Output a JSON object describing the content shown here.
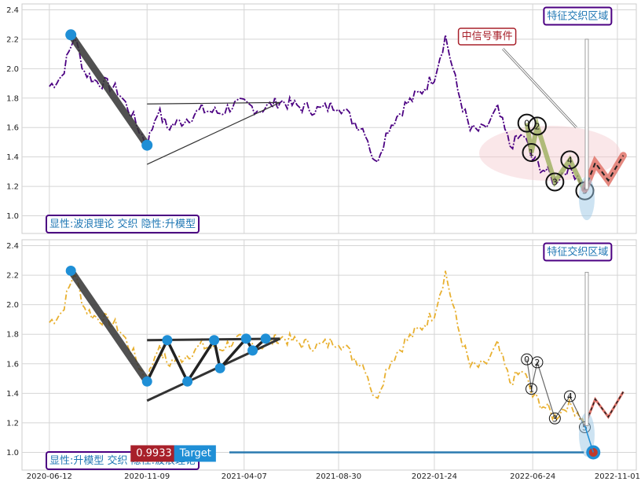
{
  "chart_data": {
    "type": "line",
    "x_ticks": [
      "2020-06-12",
      "2020-11-09",
      "2021-04-07",
      "2021-08-30",
      "2022-01-24",
      "2022-06-24",
      "2022-11-01"
    ],
    "y_ticks": [
      "1.0",
      "1.2",
      "1.4",
      "1.6",
      "1.8",
      "2.0",
      "2.2",
      "2.4"
    ],
    "ylim": [
      0.88,
      2.44
    ],
    "xlim": [
      "2020-05-01",
      "2022-11-30"
    ],
    "colors": {
      "top_series": "#4b0082",
      "bottom_series": "#e8b030",
      "marker": "#1f8fd6",
      "overlay_pink": "#e0746a",
      "target_box": "#a8202a",
      "target_blue": "#1f8fd6"
    },
    "panels": [
      {
        "name": "top",
        "series_color": "#4b0082",
        "legend_label": "显性:波浪理论 交织 隐性:升模型",
        "badge_top": "特征交织区域",
        "badge_signal": "中信号事件",
        "wave_labels": [
          "0",
          "1",
          "2",
          "3",
          "4",
          "5"
        ]
      },
      {
        "name": "bottom",
        "series_color": "#e8b030",
        "legend_label": "显性:升模型 交织 隐性:波浪理论",
        "badge_top": "特征交织区域",
        "wave_labels": [
          "0",
          "1",
          "2",
          "3",
          "4",
          "5"
        ],
        "target_value": "0.9933",
        "target_label": "Target"
      }
    ],
    "series": [
      {
        "name": "",
        "dates": [
          "2020-06-12",
          "2020-07-01",
          "2020-07-20",
          "2020-08-05",
          "2020-08-20",
          "2020-09-05",
          "2020-09-25",
          "2020-10-15",
          "2020-11-01",
          "2020-11-09",
          "2020-11-25",
          "2020-12-10",
          "2021-01-05",
          "2021-02-01",
          "2021-03-01",
          "2021-03-20",
          "2021-04-07",
          "2021-05-01",
          "2021-06-01",
          "2021-07-01",
          "2021-08-01",
          "2021-08-30",
          "2021-09-20",
          "2021-10-10",
          "2021-10-25",
          "2021-11-15",
          "2021-12-10",
          "2022-01-05",
          "2022-01-24",
          "2022-02-10",
          "2022-03-01",
          "2022-03-20",
          "2022-04-10",
          "2022-05-01",
          "2022-05-20",
          "2022-06-10",
          "2022-06-24",
          "2022-07-10",
          "2022-07-28",
          "2022-08-15",
          "2022-09-01",
          "2022-09-12"
        ],
        "values": [
          1.88,
          1.95,
          2.22,
          1.98,
          1.92,
          1.9,
          1.85,
          1.7,
          1.55,
          1.48,
          1.72,
          1.6,
          1.65,
          1.72,
          1.7,
          1.75,
          1.76,
          1.72,
          1.78,
          1.74,
          1.72,
          1.76,
          1.65,
          1.58,
          1.35,
          1.6,
          1.75,
          1.85,
          1.95,
          2.22,
          1.85,
          1.58,
          1.58,
          1.72,
          1.48,
          1.55,
          1.38,
          1.32,
          1.24,
          1.32,
          1.28,
          1.18
        ]
      }
    ]
  }
}
